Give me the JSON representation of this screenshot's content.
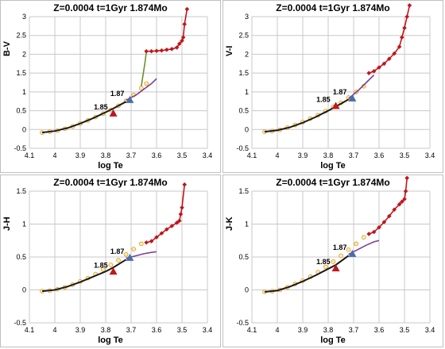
{
  "colors": {
    "grid": "#c8c8c8",
    "black": "#1a1a1a",
    "yellow": "#f5c400",
    "orange": "#e69a28",
    "red": "#c0161c",
    "purple": "#7b3f9a",
    "green": "#6d8f2c",
    "blue": "#4a6fa5"
  },
  "chart_data": [
    {
      "type": "line",
      "title": "Z=0.0004  t=1Gyr  1.874Mo",
      "xlabel": "log Te",
      "ylabel": "B-V",
      "xlim": [
        4.1,
        3.4
      ],
      "x_reversed": true,
      "ylim": [
        -0.5,
        3
      ],
      "x_ticks": [
        "4.1",
        "4",
        "3.9",
        "3.8",
        "3.7",
        "3.6",
        "3.5",
        "3.4"
      ],
      "y_ticks": [
        "-0.5",
        "0",
        "0.5",
        "1",
        "1.5",
        "2",
        "2.5",
        "3"
      ],
      "grid": true,
      "series": [
        {
          "color": "yellow",
          "style": "markers",
          "x": [
            4.05,
            4.02,
            3.99,
            3.96,
            3.93,
            3.9,
            3.87,
            3.84,
            3.81,
            3.78,
            3.75,
            3.72,
            3.69,
            3.66,
            3.64
          ],
          "y": [
            -0.08,
            -0.06,
            -0.03,
            0.02,
            0.08,
            0.16,
            0.24,
            0.33,
            0.42,
            0.52,
            0.63,
            0.76,
            0.92,
            1.1,
            1.22
          ]
        },
        {
          "color": "black",
          "style": "line",
          "x": [
            4.05,
            4.0,
            3.95,
            3.9,
            3.85,
            3.8,
            3.77,
            3.72
          ],
          "y": [
            -0.08,
            -0.04,
            0.04,
            0.16,
            0.3,
            0.46,
            0.56,
            0.74
          ]
        },
        {
          "color": "green",
          "style": "line",
          "x": [
            3.66,
            3.645,
            3.64
          ],
          "y": [
            1.15,
            1.8,
            2.08
          ]
        },
        {
          "color": "purple",
          "style": "line",
          "x": [
            3.72,
            3.68,
            3.65,
            3.62,
            3.6
          ],
          "y": [
            0.78,
            0.92,
            1.07,
            1.22,
            1.35
          ]
        },
        {
          "color": "red",
          "style": "line-markers",
          "x": [
            3.64,
            3.62,
            3.6,
            3.58,
            3.56,
            3.54,
            3.52,
            3.51,
            3.5,
            3.495,
            3.49,
            3.48
          ],
          "y": [
            2.08,
            2.08,
            2.09,
            2.1,
            2.12,
            2.14,
            2.18,
            2.28,
            2.36,
            2.45,
            2.8,
            3.2
          ]
        }
      ],
      "annotations": [
        {
          "text": "1.85",
          "x": 3.77,
          "y": 0.43,
          "marker": "red-triangle"
        },
        {
          "text": "1.87",
          "x": 3.705,
          "y": 0.79,
          "marker": "blue-triangle"
        }
      ]
    },
    {
      "type": "line",
      "title": "Z=0.0004  t=1Gyr  1.874Mo",
      "xlabel": "log Te",
      "ylabel": "V-I",
      "xlim": [
        4.1,
        3.4
      ],
      "x_reversed": true,
      "ylim": [
        -0.5,
        3
      ],
      "x_ticks": [
        "4.1",
        "4",
        "3.9",
        "3.8",
        "3.7",
        "3.6",
        "3.5",
        "3.4"
      ],
      "y_ticks": [
        "-0.5",
        "0",
        "0.5",
        "1",
        "1.5",
        "2",
        "2.5",
        "3"
      ],
      "grid": true,
      "series": [
        {
          "color": "yellow",
          "style": "markers",
          "x": [
            4.05,
            4.02,
            3.99,
            3.96,
            3.93,
            3.9,
            3.87,
            3.84,
            3.81,
            3.78,
            3.75,
            3.72,
            3.69,
            3.66
          ],
          "y": [
            -0.06,
            -0.04,
            -0.01,
            0.05,
            0.12,
            0.2,
            0.29,
            0.38,
            0.49,
            0.6,
            0.71,
            0.85,
            1.0,
            1.15
          ]
        },
        {
          "color": "black",
          "style": "line",
          "x": [
            4.05,
            4.0,
            3.95,
            3.9,
            3.85,
            3.8,
            3.77,
            3.72
          ],
          "y": [
            -0.06,
            -0.02,
            0.06,
            0.18,
            0.33,
            0.5,
            0.61,
            0.8
          ]
        },
        {
          "color": "purple",
          "style": "line",
          "x": [
            3.72,
            3.68,
            3.65,
            3.62
          ],
          "y": [
            0.82,
            1.05,
            1.25,
            1.45
          ]
        },
        {
          "color": "red",
          "style": "line-markers",
          "x": [
            3.64,
            3.62,
            3.6,
            3.58,
            3.56,
            3.54,
            3.52,
            3.51,
            3.5,
            3.49,
            3.48
          ],
          "y": [
            1.5,
            1.55,
            1.65,
            1.75,
            1.88,
            2.02,
            2.2,
            2.45,
            2.7,
            3.0,
            3.3
          ]
        }
      ],
      "annotations": [
        {
          "text": "1.85",
          "x": 3.77,
          "y": 0.63,
          "marker": "red-triangle"
        },
        {
          "text": "1.87",
          "x": 3.705,
          "y": 0.83,
          "marker": "blue-triangle"
        }
      ]
    },
    {
      "type": "line",
      "title": "Z=0.0004  t=1Gyr  1.874Mo",
      "xlabel": "log Te",
      "ylabel": "J-H",
      "xlim": [
        4.1,
        3.4
      ],
      "x_reversed": true,
      "ylim": [
        -0.5,
        1.5
      ],
      "x_ticks": [
        "4.1",
        "4",
        "3.9",
        "3.8",
        "3.7",
        "3.6",
        "3.5",
        "3.4"
      ],
      "y_ticks": [
        "-0.5",
        "0",
        "0.5",
        "1",
        "1.5"
      ],
      "grid": true,
      "series": [
        {
          "color": "yellow",
          "style": "markers",
          "x": [
            4.05,
            4.02,
            3.99,
            3.96,
            3.93,
            3.9,
            3.87,
            3.84,
            3.81,
            3.78,
            3.75,
            3.72,
            3.69,
            3.66
          ],
          "y": [
            -0.02,
            -0.01,
            0.01,
            0.04,
            0.08,
            0.13,
            0.18,
            0.24,
            0.31,
            0.38,
            0.45,
            0.54,
            0.62,
            0.7
          ]
        },
        {
          "color": "black",
          "style": "line",
          "x": [
            4.05,
            4.0,
            3.95,
            3.9,
            3.85,
            3.8,
            3.77,
            3.72
          ],
          "y": [
            -0.02,
            0.0,
            0.05,
            0.12,
            0.2,
            0.28,
            0.34,
            0.46
          ]
        },
        {
          "color": "purple",
          "style": "line",
          "x": [
            3.72,
            3.68,
            3.65,
            3.62,
            3.6
          ],
          "y": [
            0.48,
            0.52,
            0.55,
            0.57,
            0.58
          ]
        },
        {
          "color": "red",
          "style": "line-markers",
          "x": [
            3.64,
            3.62,
            3.6,
            3.58,
            3.56,
            3.54,
            3.52,
            3.51,
            3.505,
            3.5,
            3.49
          ],
          "y": [
            0.72,
            0.74,
            0.8,
            0.86,
            0.92,
            0.97,
            1.02,
            1.05,
            1.15,
            1.25,
            1.6
          ]
        }
      ],
      "annotations": [
        {
          "text": "1.85",
          "x": 3.77,
          "y": 0.28,
          "marker": "red-triangle"
        },
        {
          "text": "1.87",
          "x": 3.705,
          "y": 0.49,
          "marker": "blue-triangle"
        }
      ]
    },
    {
      "type": "line",
      "title": "Z=0.0004  t=1Gyr  1.874Mo",
      "xlabel": "log Te",
      "ylabel": "J-K",
      "xlim": [
        4.1,
        3.4
      ],
      "x_reversed": true,
      "ylim": [
        -0.5,
        1.5
      ],
      "x_ticks": [
        "4.1",
        "4",
        "3.9",
        "3.8",
        "3.7",
        "3.6",
        "3.5",
        "3.4"
      ],
      "y_ticks": [
        "-0.5",
        "0",
        "0.5",
        "1",
        "1.5"
      ],
      "grid": true,
      "series": [
        {
          "color": "yellow",
          "style": "markers",
          "x": [
            4.05,
            4.02,
            3.99,
            3.96,
            3.93,
            3.9,
            3.87,
            3.84,
            3.81,
            3.78,
            3.75,
            3.72,
            3.69,
            3.66
          ],
          "y": [
            -0.03,
            -0.02,
            0.0,
            0.04,
            0.09,
            0.14,
            0.2,
            0.27,
            0.35,
            0.43,
            0.52,
            0.61,
            0.7,
            0.8
          ]
        },
        {
          "color": "black",
          "style": "line",
          "x": [
            4.05,
            4.0,
            3.95,
            3.9,
            3.85,
            3.8,
            3.77,
            3.72
          ],
          "y": [
            -0.03,
            -0.01,
            0.05,
            0.13,
            0.22,
            0.32,
            0.38,
            0.52
          ]
        },
        {
          "color": "purple",
          "style": "line",
          "x": [
            3.72,
            3.68,
            3.65,
            3.62,
            3.6
          ],
          "y": [
            0.54,
            0.62,
            0.68,
            0.73,
            0.75
          ]
        },
        {
          "color": "red",
          "style": "line-markers",
          "x": [
            3.64,
            3.62,
            3.6,
            3.58,
            3.56,
            3.54,
            3.52,
            3.51,
            3.5,
            3.495,
            3.49
          ],
          "y": [
            0.85,
            0.88,
            0.95,
            1.03,
            1.12,
            1.22,
            1.3,
            1.34,
            1.38,
            1.5,
            1.7
          ]
        }
      ],
      "annotations": [
        {
          "text": "1.85",
          "x": 3.77,
          "y": 0.33,
          "marker": "red-triangle"
        },
        {
          "text": "1.87",
          "x": 3.705,
          "y": 0.55,
          "marker": "blue-triangle"
        }
      ]
    }
  ]
}
